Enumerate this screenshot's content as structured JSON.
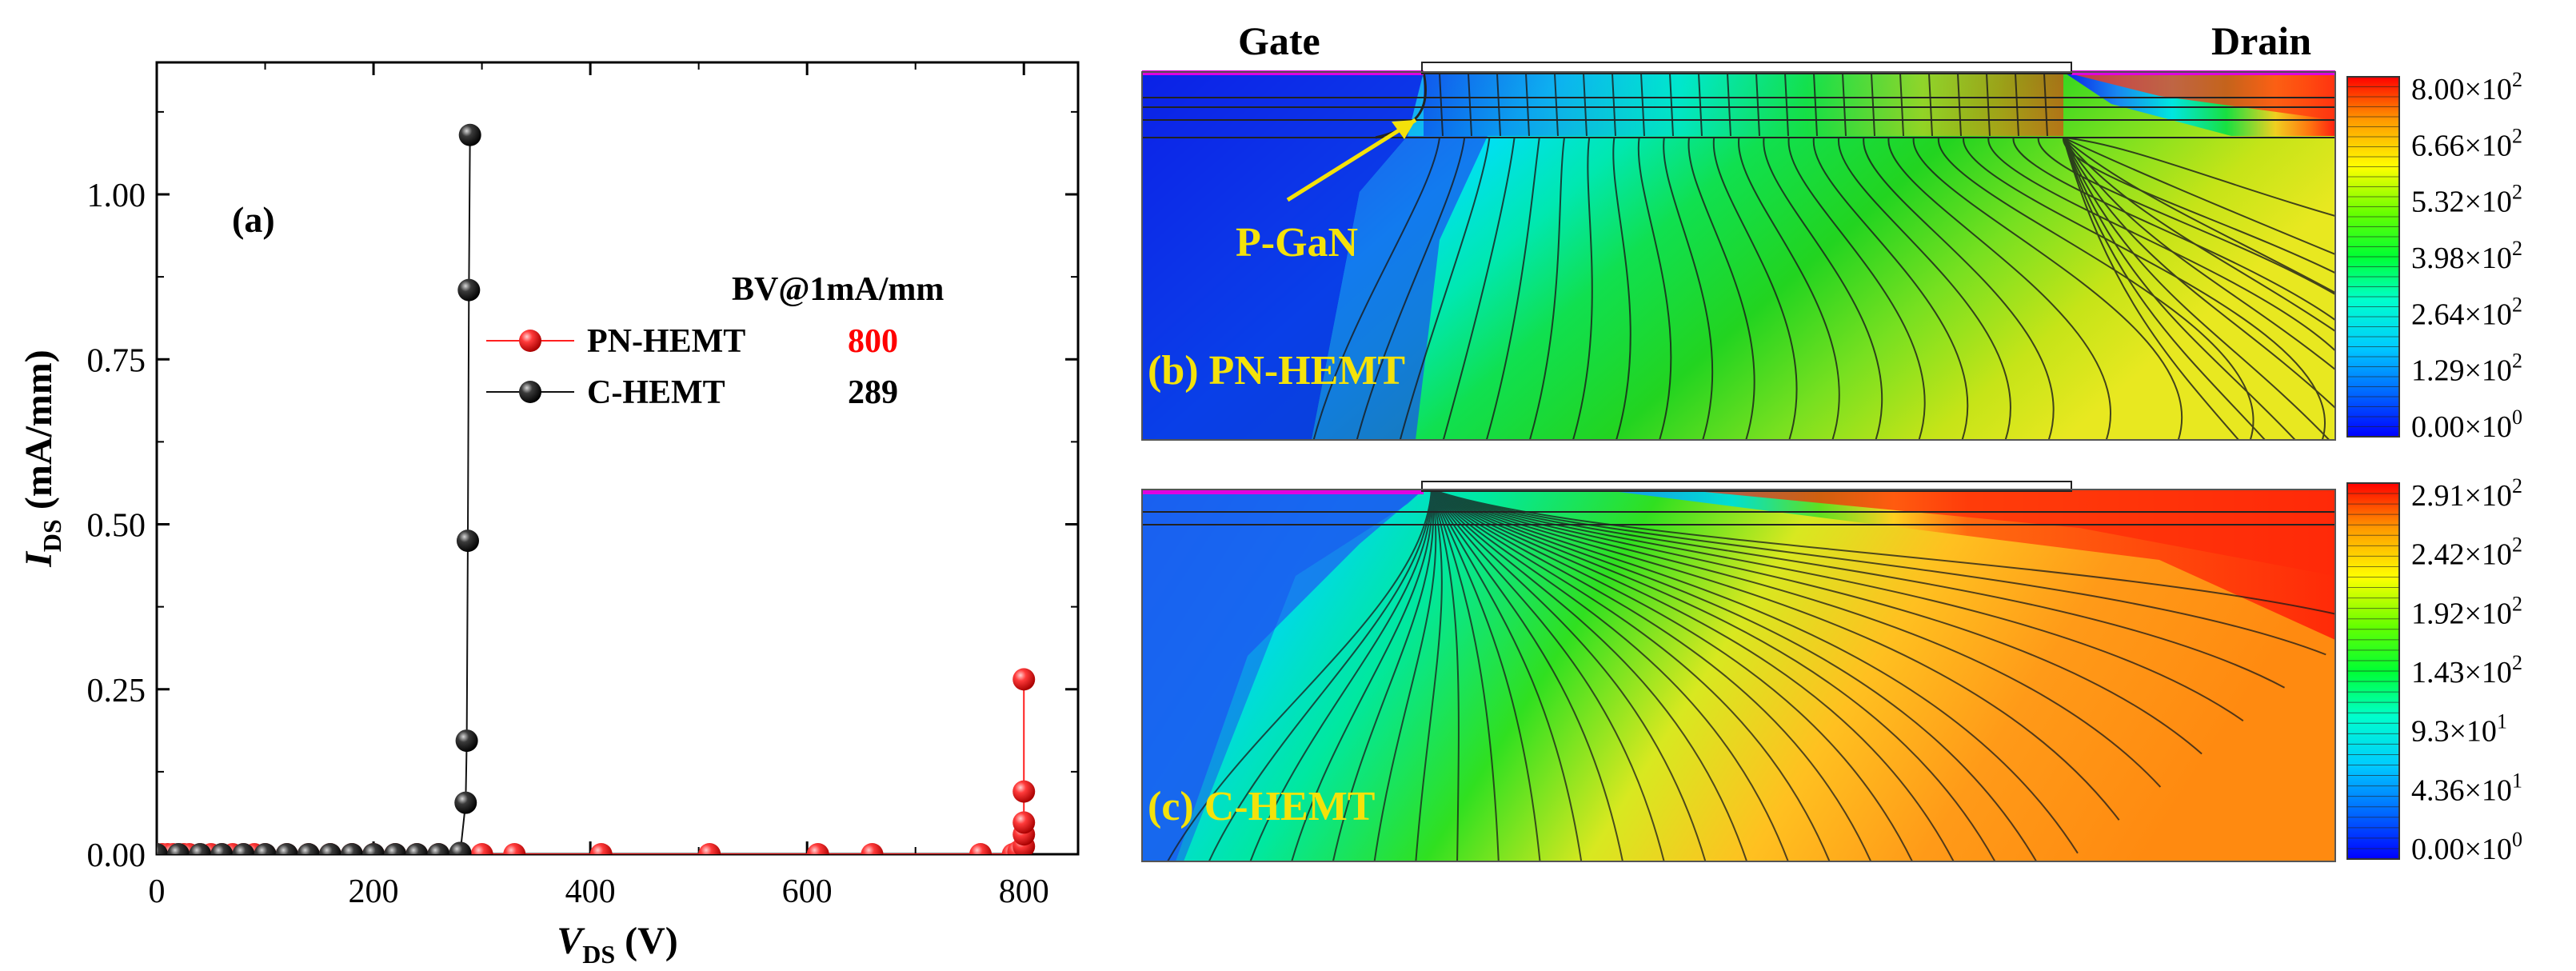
{
  "panel_a": {
    "label": "(a)",
    "legend_title": "BV@1mA/mm",
    "legend": [
      {
        "name": "PN-HEMT",
        "bv": "800",
        "color": "#ff1a1a",
        "bv_color": "#ff0000"
      },
      {
        "name": "C-HEMT",
        "bv": "289",
        "color": "#111111",
        "bv_color": "#000000"
      }
    ]
  },
  "panel_b": {
    "label": "(b) PN-HEMT",
    "gate_label": "Gate",
    "drain_label": "Drain",
    "annotation": "P-GaN",
    "colorbar_ticks": [
      {
        "mant": "8.00",
        "exp": "2"
      },
      {
        "mant": "6.66",
        "exp": "2"
      },
      {
        "mant": "5.32",
        "exp": "2"
      },
      {
        "mant": "3.98",
        "exp": "2"
      },
      {
        "mant": "2.64",
        "exp": "2"
      },
      {
        "mant": "1.29",
        "exp": "2"
      },
      {
        "mant": "0.00",
        "exp": "0"
      }
    ]
  },
  "panel_c": {
    "label": "(c) C-HEMT",
    "colorbar_ticks": [
      {
        "mant": "2.91",
        "exp": "2"
      },
      {
        "mant": "2.42",
        "exp": "2"
      },
      {
        "mant": "1.92",
        "exp": "2"
      },
      {
        "mant": "1.43",
        "exp": "2"
      },
      {
        "mant": "9.3",
        "exp": "1"
      },
      {
        "mant": "4.36",
        "exp": "1"
      },
      {
        "mant": "0.00",
        "exp": "0"
      }
    ]
  },
  "chart_data": {
    "type": "scatter",
    "title": "",
    "xlabel": {
      "main": "V",
      "sub": "DS",
      "unit": " (V)"
    },
    "ylabel": {
      "main": "I",
      "sub": "DS",
      "unit": " (mA/mm)"
    },
    "xlim": [
      0,
      850
    ],
    "ylim": [
      0,
      1.2
    ],
    "xticks": [
      0,
      200,
      400,
      600,
      800
    ],
    "yticks": [
      0.0,
      0.25,
      0.5,
      0.75,
      1.0
    ],
    "xtick_labels": [
      "0",
      "200",
      "400",
      "600",
      "800"
    ],
    "ytick_labels": [
      "0.00",
      "0.25",
      "0.50",
      "0.75",
      "1.00"
    ],
    "series": [
      {
        "name": "PN-HEMT",
        "color": "#ff2020",
        "x": [
          0,
          5,
          10,
          15,
          20,
          25,
          30,
          40,
          50,
          60,
          70,
          80,
          90,
          100,
          120,
          140,
          160,
          180,
          200,
          220,
          240,
          260,
          280,
          300,
          330,
          410,
          510,
          610,
          660,
          760,
          790,
          795,
          800,
          800,
          800,
          800,
          800
        ],
        "y": [
          0,
          0,
          0,
          0,
          0,
          0,
          0,
          0,
          0,
          0,
          0,
          0,
          0,
          0,
          0,
          0,
          0,
          0,
          0,
          0,
          0,
          0,
          0,
          0,
          0,
          0,
          0,
          0,
          0,
          0,
          0,
          0.004,
          0.012,
          0.03,
          0.048,
          0.095,
          0.265
        ]
      },
      {
        "name": "C-HEMT",
        "color": "#111111",
        "x": [
          0,
          20,
          40,
          60,
          80,
          100,
          120,
          140,
          160,
          180,
          200,
          220,
          240,
          260,
          280,
          285,
          286,
          287,
          288,
          289
        ],
        "y": [
          0,
          0,
          0,
          0,
          0,
          0,
          0,
          0,
          0,
          0,
          0,
          0,
          0,
          0,
          0.002,
          0.078,
          0.172,
          0.475,
          0.855,
          1.09
        ]
      }
    ]
  }
}
